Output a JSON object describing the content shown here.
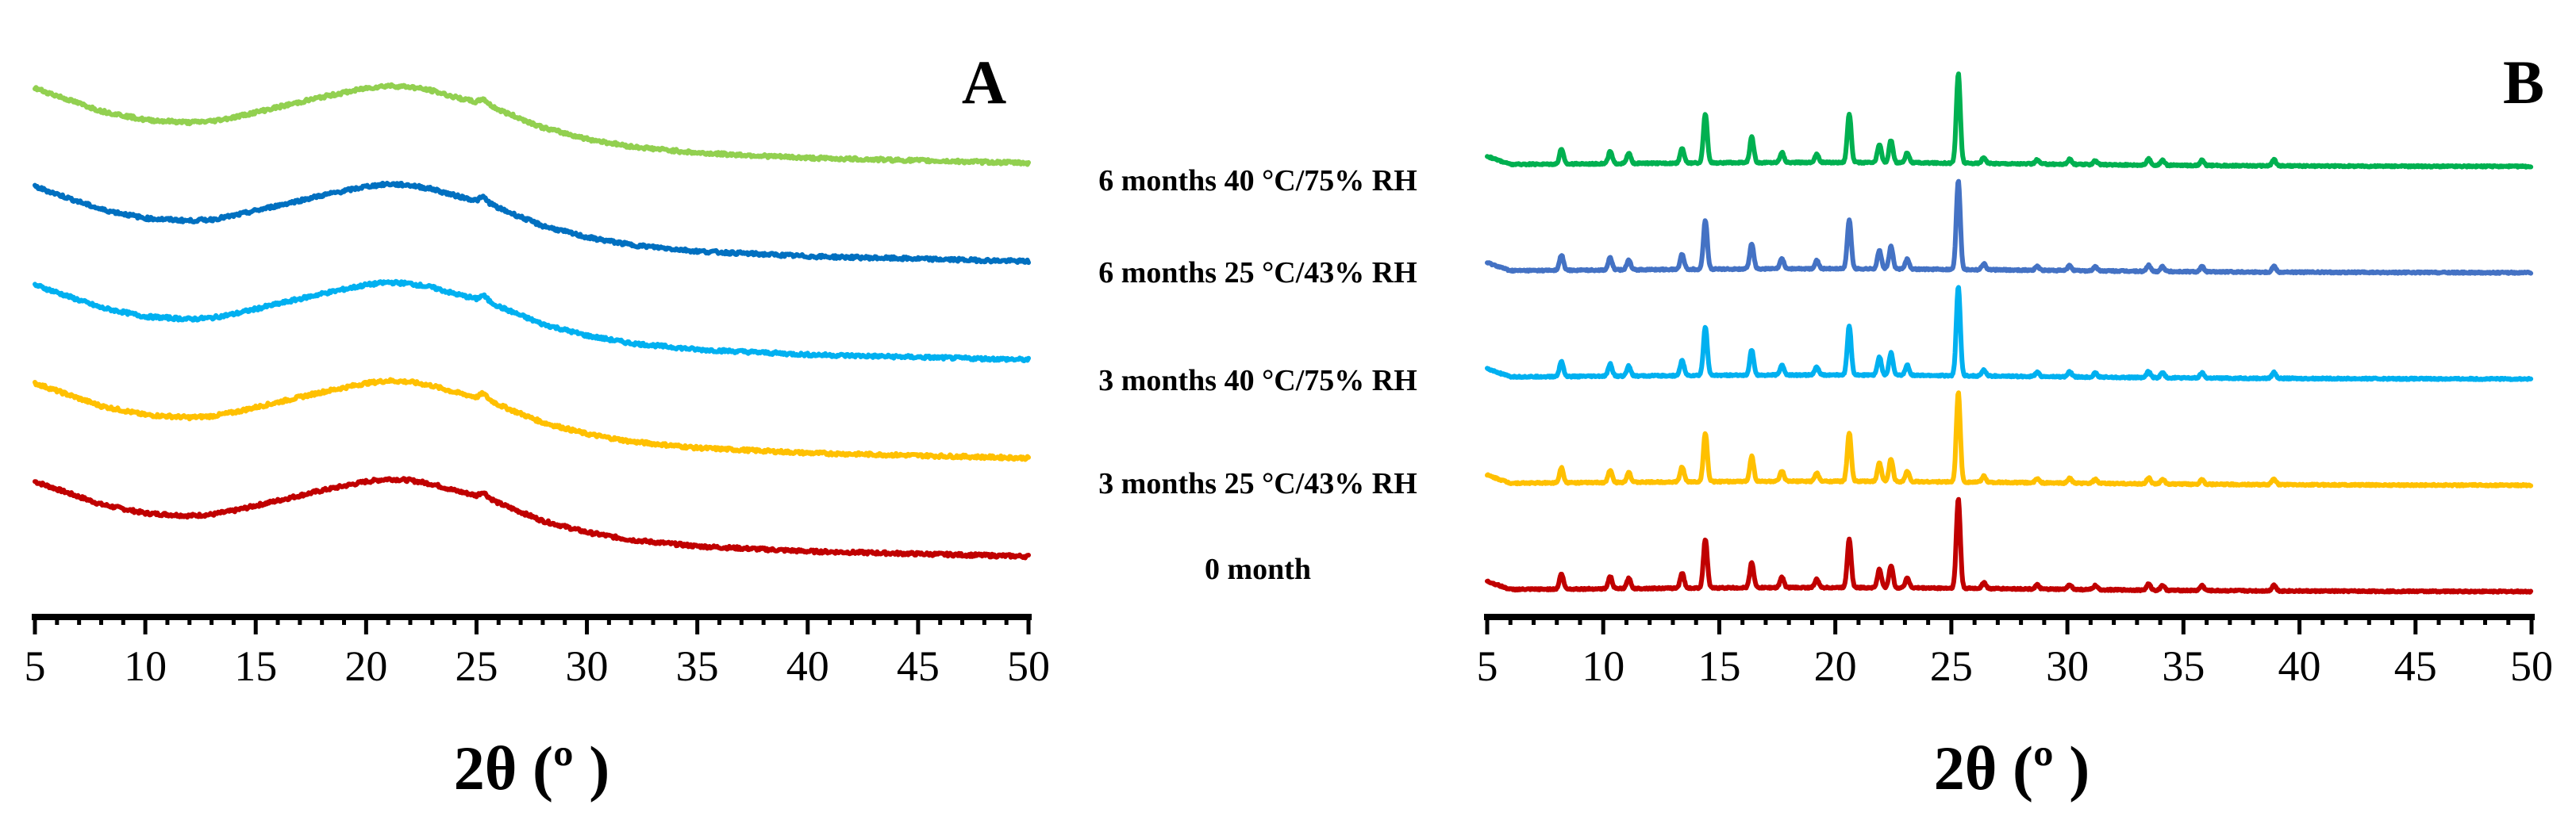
{
  "chart_data": [
    {
      "type": "line",
      "panel": "A",
      "title": "A",
      "xlabel": "2θ (º )",
      "ylabel": "",
      "xlim": [
        5,
        50
      ],
      "xticks": [
        5,
        10,
        15,
        20,
        25,
        30,
        35,
        40,
        45,
        50
      ],
      "series": [
        {
          "name": "0 month",
          "color": "#c00000",
          "x": [
            5,
            6,
            8,
            10,
            12,
            13,
            14,
            14.5,
            16,
            18,
            20,
            21,
            22,
            23,
            24,
            25,
            25.3,
            25.6,
            26,
            27,
            28,
            30,
            32,
            35,
            40,
            45,
            50
          ],
          "y": [
            0.68,
            0.62,
            0.5,
            0.43,
            0.41,
            0.42,
            0.45,
            0.47,
            0.53,
            0.61,
            0.68,
            0.7,
            0.69,
            0.66,
            0.61,
            0.57,
            0.6,
            0.55,
            0.51,
            0.44,
            0.37,
            0.28,
            0.22,
            0.17,
            0.13,
            0.11,
            0.09
          ]
        },
        {
          "name": "3 months 25 °C/43% RH",
          "color": "#ffc000",
          "x": [
            5,
            6,
            8,
            10,
            12,
            13,
            14,
            14.5,
            16,
            18,
            20,
            21,
            22,
            23,
            24,
            25,
            25.3,
            25.6,
            26,
            27,
            28,
            30,
            32,
            35,
            40,
            45,
            50
          ],
          "y": [
            0.68,
            0.62,
            0.5,
            0.43,
            0.41,
            0.42,
            0.45,
            0.47,
            0.53,
            0.61,
            0.68,
            0.7,
            0.69,
            0.66,
            0.61,
            0.57,
            0.6,
            0.55,
            0.51,
            0.44,
            0.37,
            0.28,
            0.22,
            0.17,
            0.13,
            0.11,
            0.09
          ]
        },
        {
          "name": "3 months 40 °C/75% RH",
          "color": "#00b0f0",
          "x": [
            5,
            6,
            8,
            10,
            12,
            13,
            14,
            14.5,
            16,
            18,
            20,
            21,
            22,
            23,
            24,
            25,
            25.3,
            25.6,
            26,
            27,
            28,
            30,
            32,
            35,
            40,
            45,
            50
          ],
          "y": [
            0.68,
            0.62,
            0.5,
            0.43,
            0.41,
            0.42,
            0.45,
            0.47,
            0.53,
            0.61,
            0.68,
            0.7,
            0.69,
            0.66,
            0.61,
            0.57,
            0.6,
            0.55,
            0.51,
            0.44,
            0.37,
            0.28,
            0.22,
            0.17,
            0.13,
            0.11,
            0.09
          ]
        },
        {
          "name": "6 months 25 °C/43% RH",
          "color": "#0070c0",
          "x": [
            5,
            6,
            8,
            10,
            12,
            13,
            14,
            14.5,
            16,
            18,
            20,
            21,
            22,
            23,
            24,
            25,
            25.3,
            25.6,
            26,
            27,
            28,
            30,
            32,
            35,
            40,
            45,
            50
          ],
          "y": [
            0.68,
            0.62,
            0.5,
            0.43,
            0.41,
            0.42,
            0.45,
            0.47,
            0.53,
            0.61,
            0.68,
            0.7,
            0.69,
            0.66,
            0.61,
            0.57,
            0.6,
            0.55,
            0.51,
            0.44,
            0.37,
            0.28,
            0.22,
            0.17,
            0.13,
            0.11,
            0.09
          ]
        },
        {
          "name": "6 months 40 °C/75% RH",
          "color": "#92d050",
          "x": [
            5,
            6,
            8,
            10,
            12,
            13,
            14,
            14.5,
            16,
            18,
            20,
            21,
            22,
            23,
            24,
            25,
            25.3,
            25.6,
            26,
            27,
            28,
            30,
            32,
            35,
            40,
            45,
            50
          ],
          "y": [
            0.68,
            0.62,
            0.5,
            0.43,
            0.41,
            0.42,
            0.45,
            0.47,
            0.53,
            0.61,
            0.68,
            0.7,
            0.69,
            0.66,
            0.61,
            0.57,
            0.6,
            0.55,
            0.51,
            0.44,
            0.37,
            0.28,
            0.22,
            0.17,
            0.13,
            0.11,
            0.09
          ]
        }
      ]
    },
    {
      "type": "line",
      "panel": "B",
      "title": "B",
      "xlabel": "2θ (º )",
      "ylabel": "",
      "xlim": [
        5,
        50
      ],
      "xticks": [
        5,
        10,
        15,
        20,
        25,
        30,
        35,
        40,
        45,
        50
      ],
      "peaks": [
        {
          "x": 8.2,
          "y": 0.15
        },
        {
          "x": 10.3,
          "y": 0.12
        },
        {
          "x": 11.1,
          "y": 0.1
        },
        {
          "x": 13.4,
          "y": 0.15
        },
        {
          "x": 14.4,
          "y": 0.48
        },
        {
          "x": 16.4,
          "y": 0.25
        },
        {
          "x": 17.7,
          "y": 0.1
        },
        {
          "x": 19.2,
          "y": 0.08
        },
        {
          "x": 20.6,
          "y": 0.48
        },
        {
          "x": 21.9,
          "y": 0.18
        },
        {
          "x": 22.4,
          "y": 0.22
        },
        {
          "x": 23.1,
          "y": 0.1
        },
        {
          "x": 25.3,
          "y": 0.88
        },
        {
          "x": 26.4,
          "y": 0.06
        },
        {
          "x": 28.7,
          "y": 0.04
        },
        {
          "x": 30.1,
          "y": 0.05
        },
        {
          "x": 31.2,
          "y": 0.04
        },
        {
          "x": 33.5,
          "y": 0.06
        },
        {
          "x": 34.1,
          "y": 0.05
        },
        {
          "x": 35.8,
          "y": 0.05
        },
        {
          "x": 38.9,
          "y": 0.06
        }
      ],
      "series": [
        {
          "name": "0 month",
          "color": "#c00000"
        },
        {
          "name": "3 months 25 °C/43% RH",
          "color": "#ffc000"
        },
        {
          "name": "3 months 40 °C/75% RH",
          "color": "#00b0f0"
        },
        {
          "name": "6 months 25 °C/43% RH",
          "color": "#4472c4"
        },
        {
          "name": "6 months 40 °C/75% RH",
          "color": "#00b050"
        }
      ]
    }
  ]
}
